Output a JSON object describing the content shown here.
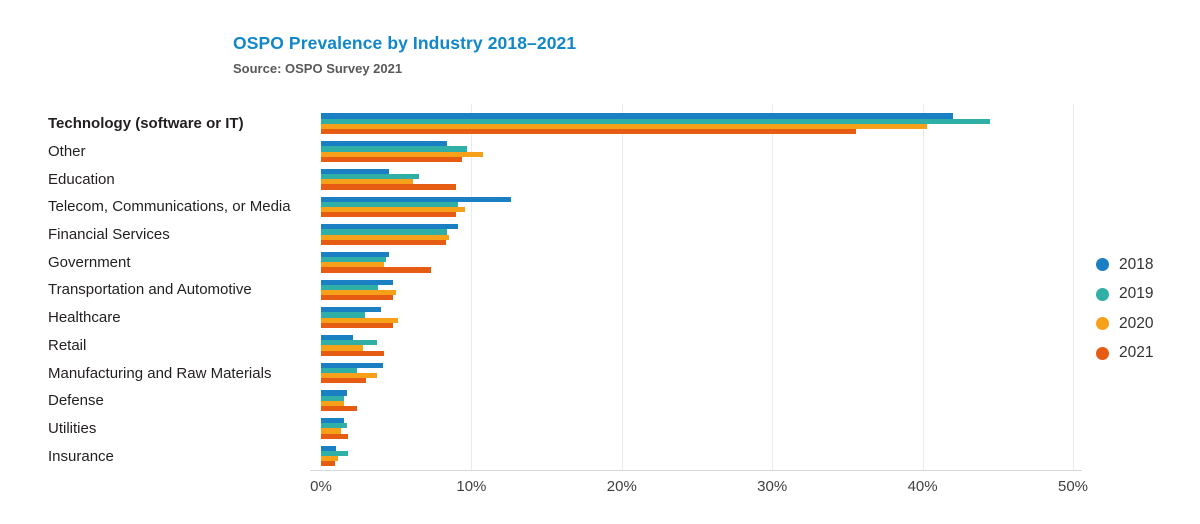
{
  "header": {
    "title": "OSPO Prevalence by Industry 2018–2021",
    "subtitle": "Source: OSPO Survey 2021"
  },
  "colors": {
    "title": "#1187c9",
    "subtitle": "#58595b",
    "label": "#231f20",
    "tick": "#404040",
    "gridline": "#ebebeb",
    "axis_line": "#d8d8d8"
  },
  "chart_data": {
    "type": "bar",
    "orientation": "horizontal",
    "title": "OSPO Prevalence by Industry 2018–2021",
    "subtitle": "Source: OSPO Survey 2021",
    "categories": [
      "Technology (software or IT)",
      "Other",
      "Education",
      "Telecom, Communications, or Media",
      "Financial Services",
      "Government",
      "Transportation and Automotive",
      "Healthcare",
      "Retail",
      "Manufacturing and Raw Materials",
      "Defense",
      "Utilities",
      "Insurance"
    ],
    "emphasized_category": "Technology (software or IT)",
    "series": [
      {
        "name": "2018",
        "color": "#1b7fc4",
        "values": [
          42.0,
          8.4,
          4.5,
          12.6,
          9.1,
          4.5,
          4.8,
          4.0,
          2.1,
          4.1,
          1.7,
          1.5,
          1.0
        ]
      },
      {
        "name": "2019",
        "color": "#2fafa6",
        "values": [
          44.5,
          9.7,
          6.5,
          9.1,
          8.4,
          4.3,
          3.8,
          2.9,
          3.7,
          2.4,
          1.5,
          1.7,
          1.8
        ]
      },
      {
        "name": "2020",
        "color": "#f7a11a",
        "values": [
          40.3,
          10.8,
          6.1,
          9.6,
          8.5,
          4.2,
          5.0,
          5.1,
          2.8,
          3.7,
          1.5,
          1.3,
          1.1
        ]
      },
      {
        "name": "2021",
        "color": "#e55c12",
        "values": [
          35.6,
          9.4,
          9.0,
          9.0,
          8.3,
          7.3,
          4.8,
          4.8,
          4.2,
          3.0,
          2.4,
          1.8,
          0.9
        ]
      }
    ],
    "xlabel": "",
    "ylabel": "",
    "xlim": [
      0,
      50
    ],
    "xticks": [
      0,
      10,
      20,
      30,
      40,
      50
    ],
    "xtick_labels": [
      "0%",
      "10%",
      "20%",
      "30%",
      "40%",
      "50%"
    ],
    "grid": "vertical-light",
    "legend_position": "right",
    "value_unit": "%"
  }
}
